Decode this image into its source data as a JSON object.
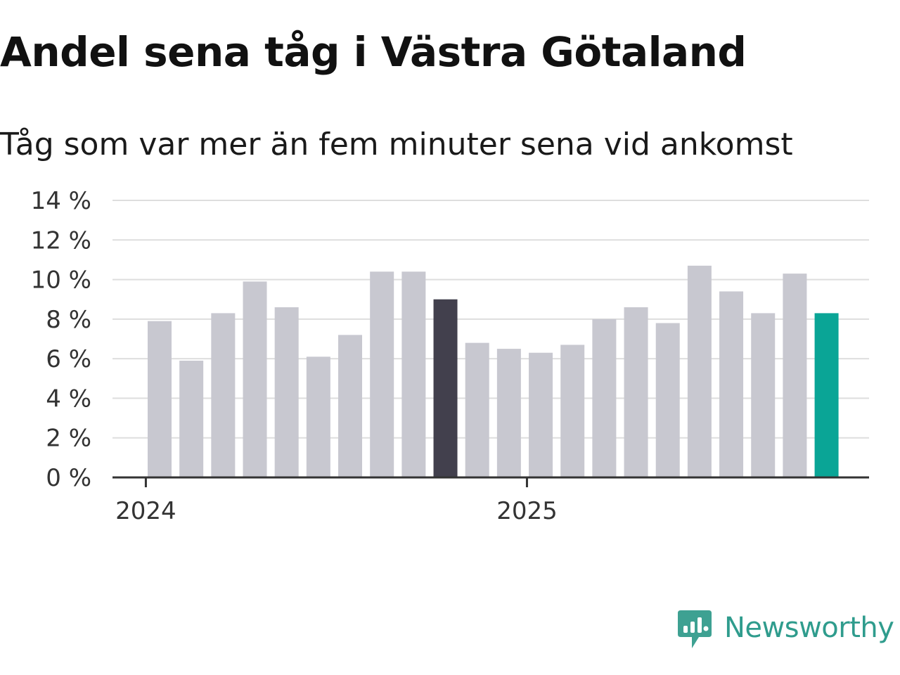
{
  "chart_data": {
    "type": "bar",
    "title": "Andel sena tåg i Västra Götaland",
    "subtitle": "Tåg som var mer än fem minuter sena vid ankomst",
    "x": [
      "2024-01",
      "2024-02",
      "2024-03",
      "2024-04",
      "2024-05",
      "2024-06",
      "2024-07",
      "2024-08",
      "2024-09",
      "2024-10",
      "2024-11",
      "2024-12",
      "2025-01",
      "2025-02",
      "2025-03",
      "2025-04",
      "2025-05",
      "2025-06",
      "2025-07",
      "2025-08",
      "2025-09",
      "2025-10"
    ],
    "values": [
      7.9,
      5.9,
      8.3,
      9.9,
      8.6,
      6.1,
      7.2,
      10.4,
      10.4,
      9.0,
      6.8,
      6.5,
      6.3,
      6.7,
      8.0,
      8.6,
      7.8,
      10.7,
      9.4,
      8.3,
      10.3,
      8.3
    ],
    "ylim": [
      0,
      14
    ],
    "yticks": [
      0,
      2,
      4,
      6,
      8,
      10,
      12,
      14
    ],
    "ytick_suffix": " %",
    "xticks": [
      {
        "label": "2024",
        "at": "2024-01"
      },
      {
        "label": "2025",
        "at": "2025-01"
      }
    ],
    "grid": true,
    "colors": {
      "default": "#c8c8d0",
      "highlight": "#42404d",
      "latest": "#0aa596",
      "grid": "#dedede",
      "axis": "#333333"
    },
    "highlight_index": 9,
    "latest_index": 21
  },
  "brand": {
    "name": "Newsworthy",
    "icon": "newsworthy-logo-icon",
    "color": "#2f9c8d"
  }
}
